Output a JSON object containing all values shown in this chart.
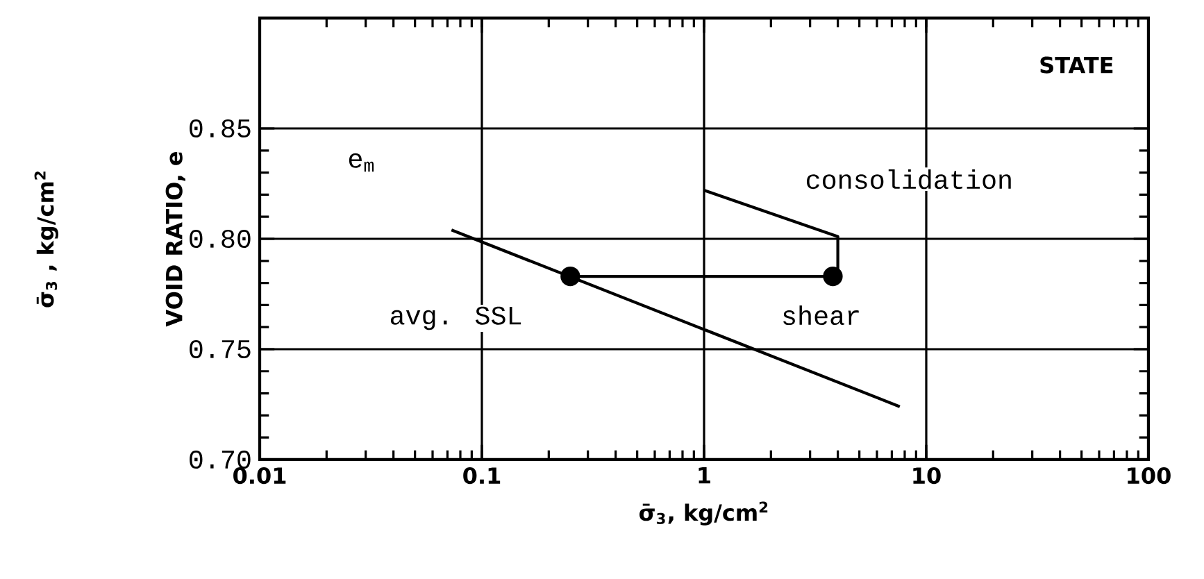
{
  "chart_data": {
    "type": "line",
    "xlabel": "σ̄$_{3}$, kg/cm$^{2}$",
    "ylabel": "VOID RATIO, e",
    "log": "x",
    "grid": true,
    "line_style": "solid",
    "xlim": [
      0.01,
      100
    ],
    "ylim": [
      0.7,
      0.9
    ],
    "xticks": [
      0.01,
      0.1,
      1,
      10,
      100
    ],
    "yticks": [
      {
        "value": 0.7,
        "label": "0.70"
      },
      {
        "value": 0.75,
        "label": "0.75"
      },
      {
        "value": 0.8,
        "label": "0.80"
      },
      {
        "value": 0.85,
        "label": "0.85"
      }
    ],
    "series": [
      {
        "color": "#000000",
        "marker": "none",
        "x": [
          0.073,
          7.6
        ],
        "values": [
          0.804,
          0.724
        ]
      },
      {
        "color": "#000000",
        "marker": "none",
        "x": [
          1,
          4.0,
          4.0
        ],
        "values": [
          0.822,
          0.801,
          0.785
        ]
      },
      {
        "color": "#000000",
        "marker": "none",
        "x": [
          3.8,
          0.25
        ],
        "values": [
          0.783,
          0.783
        ]
      },
      {
        "type": "scatter",
        "color": "#000000",
        "marker": "circle",
        "x": [
          0.25
        ],
        "values": [
          0.783
        ]
      },
      {
        "type": "scatter",
        "color": "#000000",
        "marker": "circle",
        "x": [
          3.8
        ],
        "values": [
          0.783
        ]
      }
    ],
    "annotations": [
      "STATE",
      "σ̄$_{3}$ , kg/cm$^{2}$",
      "consolidation",
      "shear",
      "avg. SSL",
      "e$_{m}$"
    ]
  }
}
